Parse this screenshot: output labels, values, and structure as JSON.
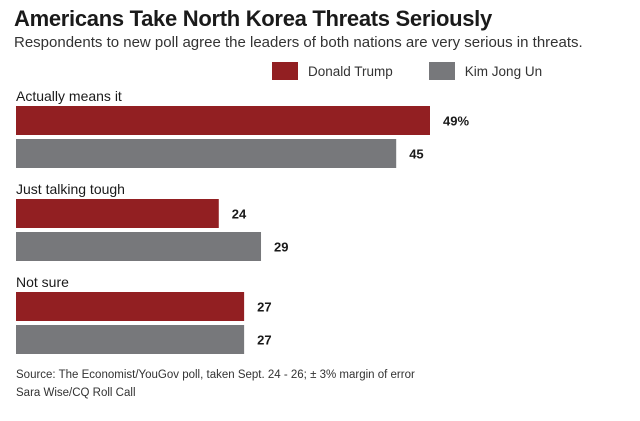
{
  "chart_data": {
    "type": "bar",
    "orientation": "horizontal",
    "title": "Americans Take North Korea Threats Seriously",
    "subtitle": "Respondents to new poll agree the leaders of both nations are very serious in threats.",
    "categories": [
      "Actually means it",
      "Just talking tough",
      "Not sure"
    ],
    "series": [
      {
        "name": "Donald Trump",
        "color": "#921f22",
        "values": [
          49,
          24,
          27
        ],
        "labels": [
          "49%",
          "24",
          "27"
        ]
      },
      {
        "name": "Kim Jong Un",
        "color": "#77787b",
        "values": [
          45,
          29,
          27
        ],
        "labels": [
          "45",
          "29",
          "27"
        ]
      }
    ],
    "xlim": [
      0,
      60
    ],
    "grid": false,
    "legend_position": "top-right",
    "unit": "%"
  },
  "footer": {
    "source": "Source: The Economist/YouGov poll, taken Sept. 24 - 26; ± 3% margin of error",
    "credit": "Sara Wise/CQ Roll Call"
  }
}
